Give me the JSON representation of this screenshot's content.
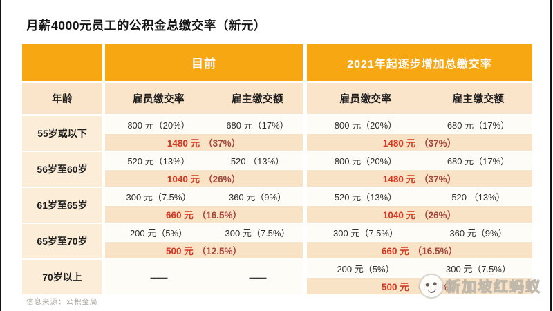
{
  "title": "月薪4000元员工的公积金总缴交率（新元）",
  "source_note": "信息来源：公积金局",
  "watermark": {
    "brand": "新加坡红蚂蚁",
    "logo": "red-ant-face-logo"
  },
  "colors": {
    "header_orange": "#F7A712",
    "subheader_bg": "#FAE5CB",
    "age_col_bg": "#FBEDD7",
    "value_row_bg": "#FEFCF6",
    "total_row_bg": "#F9E3C6",
    "total_red": "#D63720",
    "total_dark_red": "#A5453C"
  },
  "table": {
    "group_headers": {
      "current": "目前",
      "future": "2021年起逐步增加总缴交率"
    },
    "columns": {
      "age": "年龄",
      "employee_rate": "雇员缴交率",
      "employer_amount": "雇主缴交额"
    },
    "rows": [
      {
        "age": "55岁或以下",
        "current": {
          "employee": "800 元（20%）",
          "employer": "680 元（17%）",
          "total_amount": "1480 元",
          "total_pct": "（37%）"
        },
        "future": {
          "employee": "800 元（20%）",
          "employer": "680 元（17%）",
          "total_amount": "1480 元",
          "total_pct": "（37%）"
        }
      },
      {
        "age": "56岁至60岁",
        "current": {
          "employee": "520 元（13%）",
          "employer": "520 （13%）",
          "total_amount": "1040 元",
          "total_pct": "（26%）"
        },
        "future": {
          "employee": "800 元（20%）",
          "employer": "680 元（17%）",
          "total_amount": "1480 元",
          "total_pct": "（37%）"
        }
      },
      {
        "age": "61岁至65岁",
        "current": {
          "employee": "300 元（7.5%）",
          "employer": "360 元（9%）",
          "total_amount": "660 元",
          "total_pct": "（16.5%）"
        },
        "future": {
          "employee": "520 元（13%）",
          "employer": "520 （13%）",
          "total_amount": "1040 元",
          "total_pct": "（26%）"
        }
      },
      {
        "age": "65岁至70岁",
        "current": {
          "employee": "200 元（5%）",
          "employer": "300 元（7.5%）",
          "total_amount": "500 元",
          "total_pct": "（12.5%）"
        },
        "future": {
          "employee": "300 元（7.5%）",
          "employer": "360 元（9%）",
          "total_amount": "660 元",
          "total_pct": "（16.5%）"
        }
      },
      {
        "age": "70岁以上",
        "current": {
          "employee": "——",
          "employer": "——"
        },
        "future": {
          "employee": "200 元（5%）",
          "employer": "300 元（7.5%）",
          "total_amount": "500 元",
          "total_pct": "（12.5%）"
        }
      }
    ]
  },
  "chart_data": {
    "type": "table",
    "title": "月薪4000元员工的公积金总缴交率（新元）",
    "column_groups": [
      "目前",
      "2021年起逐步增加总缴交率"
    ],
    "columns": [
      "年龄",
      "目前-雇员缴交率",
      "目前-雇主缴交额",
      "目前-总缴交",
      "2021-雇员缴交率",
      "2021-雇主缴交额",
      "2021-总缴交"
    ],
    "rows": [
      [
        "55岁或以下",
        "800 元（20%）",
        "680 元（17%）",
        "1480 元（37%）",
        "800 元（20%）",
        "680 元（17%）",
        "1480 元（37%）"
      ],
      [
        "56岁至60岁",
        "520 元（13%）",
        "520 （13%）",
        "1040 元（26%）",
        "800 元（20%）",
        "680 元（17%）",
        "1480 元（37%）"
      ],
      [
        "61岁至65岁",
        "300 元（7.5%）",
        "360 元（9%）",
        "660 元（16.5%）",
        "520 元（13%）",
        "520 （13%）",
        "1040 元（26%）"
      ],
      [
        "65岁至70岁",
        "200 元（5%）",
        "300 元（7.5%）",
        "500 元（12.5%）",
        "300 元（7.5%）",
        "360 元（9%）",
        "660 元（16.5%）"
      ],
      [
        "70岁以上",
        "——",
        "——",
        "",
        "200 元（5%）",
        "300 元（7.5%）",
        "500 元（12.5%）"
      ]
    ]
  }
}
